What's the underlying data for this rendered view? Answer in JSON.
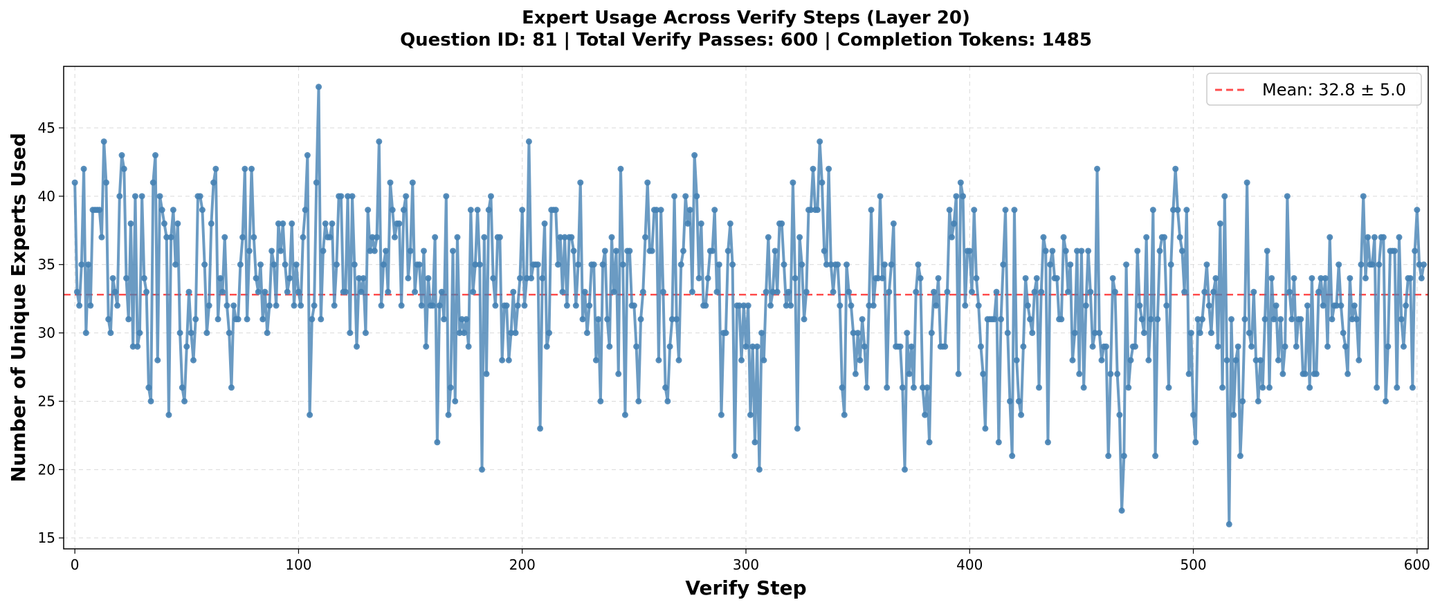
{
  "chart_data": {
    "type": "line",
    "title": "Expert Usage Across Verify Steps (Layer 20)",
    "subtitle": "Question ID: 81 | Total Verify Passes: 600 | Completion Tokens: 1485",
    "xlabel": "Verify Step",
    "ylabel": "Number of Unique Experts Used",
    "xlim": [
      -5,
      605
    ],
    "ylim": [
      14.2,
      49.5
    ],
    "x_ticks": [
      0,
      100,
      200,
      300,
      400,
      500,
      600
    ],
    "y_ticks": [
      15,
      20,
      25,
      30,
      35,
      40,
      45
    ],
    "grid": true,
    "legend_position": "top-right",
    "series": [
      {
        "color": "#4682b4",
        "values": [
          41,
          33,
          32,
          35,
          42,
          30,
          35,
          32,
          39,
          39,
          39,
          39,
          37,
          44,
          41,
          31,
          30,
          34,
          33,
          32,
          40,
          43,
          42,
          34,
          31,
          38,
          29,
          40,
          29,
          30,
          40,
          34,
          33,
          26,
          25,
          41,
          43,
          28,
          40,
          39,
          38,
          37,
          24,
          37,
          39,
          35,
          38,
          30,
          26,
          25,
          29,
          33,
          30,
          28,
          31,
          40,
          40,
          39,
          35,
          30,
          32,
          38,
          41,
          42,
          31,
          34,
          33,
          37,
          32,
          30,
          26,
          32,
          31,
          31,
          35,
          37,
          42,
          31,
          36,
          42,
          37,
          34,
          33,
          35,
          31,
          33,
          30,
          32,
          36,
          35,
          32,
          38,
          36,
          38,
          35,
          33,
          34,
          38,
          32,
          35,
          33,
          32,
          37,
          39,
          43,
          24,
          31,
          32,
          41,
          48,
          31,
          36,
          38,
          37,
          37,
          38,
          32,
          35,
          40,
          40,
          33,
          33,
          40,
          30,
          40,
          35,
          29,
          34,
          33,
          34,
          30,
          39,
          36,
          37,
          36,
          37,
          44,
          32,
          35,
          36,
          33,
          41,
          39,
          37,
          38,
          38,
          32,
          39,
          40,
          34,
          36,
          41,
          33,
          35,
          35,
          32,
          36,
          29,
          34,
          32,
          32,
          37,
          22,
          32,
          33,
          31,
          40,
          24,
          26,
          36,
          25,
          37,
          30,
          31,
          30,
          31,
          29,
          39,
          33,
          35,
          39,
          35,
          20,
          37,
          27,
          39,
          40,
          34,
          32,
          37,
          37,
          28,
          32,
          32,
          28,
          30,
          33,
          30,
          32,
          34,
          39,
          32,
          34,
          44,
          34,
          35,
          35,
          35,
          23,
          34,
          38,
          29,
          30,
          39,
          39,
          39,
          35,
          37,
          33,
          37,
          32,
          37,
          37,
          36,
          32,
          35,
          41,
          31,
          33,
          30,
          32,
          35,
          35,
          28,
          31,
          25,
          35,
          36,
          31,
          29,
          37,
          33,
          36,
          27,
          42,
          35,
          24,
          36,
          36,
          32,
          32,
          29,
          25,
          31,
          33,
          37,
          41,
          36,
          36,
          39,
          39,
          28,
          39,
          33,
          26,
          25,
          29,
          31,
          40,
          31,
          28,
          35,
          36,
          40,
          38,
          39,
          33,
          43,
          40,
          34,
          38,
          32,
          32,
          34,
          36,
          36,
          39,
          33,
          35,
          24,
          30,
          30,
          36,
          38,
          35,
          21,
          32,
          32,
          28,
          32,
          29,
          32,
          24,
          29,
          22,
          29,
          20,
          30,
          28,
          33,
          37,
          32,
          33,
          36,
          33,
          38,
          38,
          35,
          32,
          33,
          32,
          41,
          34,
          23,
          37,
          35,
          31,
          33,
          39,
          39,
          42,
          39,
          39,
          44,
          41,
          36,
          35,
          42,
          35,
          33,
          35,
          35,
          32,
          26,
          24,
          35,
          33,
          32,
          30,
          27,
          30,
          28,
          31,
          29,
          26,
          32,
          39,
          32,
          34,
          34,
          40,
          34,
          35,
          26,
          33,
          35,
          38,
          29,
          29,
          29,
          26,
          20,
          30,
          27,
          29,
          26,
          33,
          35,
          34,
          26,
          24,
          26,
          22,
          30,
          33,
          32,
          34,
          29,
          29,
          29,
          33,
          39,
          37,
          38,
          40,
          27,
          41,
          40,
          32,
          36,
          36,
          33,
          39,
          34,
          32,
          29,
          27,
          23,
          31,
          31,
          31,
          31,
          33,
          22,
          31,
          35,
          39,
          30,
          25,
          21,
          39,
          28,
          25,
          24,
          29,
          34,
          32,
          31,
          30,
          33,
          34,
          26,
          33,
          37,
          36,
          22,
          35,
          36,
          34,
          34,
          31,
          31,
          37,
          36,
          33,
          35,
          28,
          30,
          36,
          27,
          36,
          26,
          32,
          36,
          33,
          29,
          30,
          42,
          30,
          28,
          29,
          29,
          21,
          27,
          34,
          33,
          27,
          24,
          17,
          21,
          35,
          26,
          28,
          29,
          29,
          36,
          32,
          31,
          30,
          37,
          28,
          31,
          39,
          21,
          31,
          36,
          37,
          37,
          32,
          26,
          35,
          39,
          42,
          39,
          37,
          36,
          33,
          39,
          27,
          30,
          24,
          22,
          31,
          30,
          31,
          33,
          35,
          32,
          30,
          33,
          34,
          29,
          38,
          26,
          40,
          28,
          16,
          31,
          24,
          28,
          29,
          21,
          25,
          31,
          41,
          30,
          29,
          33,
          28,
          25,
          28,
          26,
          31,
          36,
          26,
          34,
          31,
          32,
          28,
          31,
          27,
          29,
          40,
          33,
          31,
          34,
          29,
          31,
          31,
          27,
          27,
          32,
          26,
          34,
          27,
          27,
          33,
          34,
          32,
          34,
          29,
          37,
          31,
          32,
          32,
          35,
          32,
          30,
          29,
          27,
          34,
          31,
          32,
          31,
          28,
          35,
          40,
          34,
          37,
          35,
          35,
          37,
          26,
          35,
          37,
          37,
          25,
          29,
          36,
          36,
          36,
          26,
          37,
          31,
          29,
          32,
          34,
          34,
          26,
          36,
          39,
          35,
          34,
          35
        ]
      },
      {
        "name": "Mean: 32.8 ± 5.0",
        "color": "#ff4d4d",
        "values": [
          32.8
        ]
      }
    ]
  }
}
